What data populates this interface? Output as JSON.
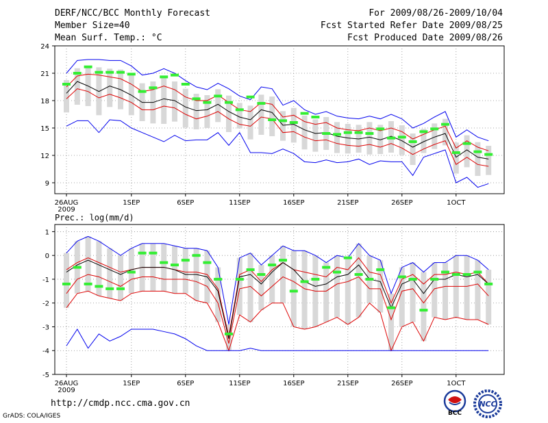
{
  "header": {
    "title": "DERF/NCC/BCC Monthly Forecast",
    "member_size": "Member Size=40",
    "variable": "Mean Surf. Temp.: °C",
    "period": "For 2009/08/26-2009/10/04",
    "start_date": "Fcst Started Refer Date 2009/08/25",
    "produced_date": "Fcst Produced Date 2009/08/26"
  },
  "footer": {
    "url": "http://cmdp.ncc.cma.gov.cn",
    "credit": "GrADS: COLA/IGES",
    "logo_left_text": "BCC",
    "logo_right_text": "NCC"
  },
  "colors": {
    "max_min": "#0000ee",
    "spread": "#dd0000",
    "mean": "#000000",
    "observed": "#33ee33",
    "box": "#d8d8d8",
    "grid": "#888888"
  },
  "chart_data": [
    {
      "type": "line",
      "title": "Mean Surf. Temp.: °C",
      "xlabel": "",
      "ylabel": "°C",
      "ylim": [
        8,
        24
      ],
      "yticks": [
        9,
        12,
        15,
        18,
        21,
        24
      ],
      "x": [
        1,
        2,
        3,
        4,
        5,
        6,
        7,
        8,
        9,
        10,
        11,
        12,
        13,
        14,
        15,
        16,
        17,
        18,
        19,
        20,
        21,
        22,
        23,
        24,
        25,
        26,
        27,
        28,
        29,
        30,
        31,
        32,
        33,
        34,
        35,
        36,
        37,
        38,
        39,
        40
      ],
      "xticks": [
        {
          "x": 1,
          "label": "26AUG"
        },
        {
          "x": 7,
          "label": "1SEP"
        },
        {
          "x": 12,
          "label": "6SEP"
        },
        {
          "x": 17,
          "label": "11SEP"
        },
        {
          "x": 22,
          "label": "16SEP"
        },
        {
          "x": 27,
          "label": "21SEP"
        },
        {
          "x": 32,
          "label": "26SEP"
        },
        {
          "x": 37,
          "label": "1OCT"
        }
      ],
      "year_label": "2009",
      "series": [
        {
          "name": "max",
          "values": [
            21.0,
            22.4,
            22.5,
            22.5,
            22.4,
            22.4,
            21.8,
            20.8,
            21.0,
            21.5,
            21.0,
            20.2,
            19.5,
            19.2,
            19.9,
            19.3,
            18.5,
            18.1,
            19.5,
            19.3,
            17.5,
            18.0,
            17.0,
            16.5,
            16.8,
            16.3,
            16.1,
            16.0,
            16.3,
            16.0,
            16.5,
            16.0,
            15.0,
            15.5,
            16.2,
            16.8,
            14.0,
            14.8,
            14.0,
            13.6
          ]
        },
        {
          "name": "upper",
          "values": [
            19.5,
            20.7,
            20.9,
            20.8,
            20.6,
            20.4,
            19.8,
            19.0,
            19.2,
            19.6,
            19.2,
            18.4,
            18.0,
            18.0,
            18.6,
            17.8,
            17.0,
            16.8,
            17.8,
            17.6,
            16.2,
            16.4,
            15.7,
            15.4,
            15.6,
            15.0,
            14.8,
            14.7,
            15.0,
            14.7,
            15.0,
            14.6,
            13.8,
            14.3,
            14.8,
            15.2,
            12.8,
            13.6,
            12.9,
            12.5
          ]
        },
        {
          "name": "mean",
          "values": [
            18.8,
            20.1,
            19.6,
            19.0,
            19.6,
            19.2,
            18.6,
            17.8,
            17.8,
            18.2,
            18.0,
            17.3,
            16.9,
            17.0,
            17.6,
            16.8,
            16.2,
            15.9,
            17.0,
            16.7,
            15.3,
            15.4,
            14.8,
            14.4,
            14.5,
            14.1,
            13.9,
            13.8,
            14.0,
            13.7,
            14.1,
            13.6,
            12.9,
            13.5,
            14.0,
            14.4,
            11.8,
            12.6,
            11.8,
            11.6
          ]
        },
        {
          "name": "lower",
          "values": [
            18.2,
            19.3,
            19.0,
            18.3,
            18.7,
            18.3,
            17.8,
            17.0,
            17.0,
            17.4,
            17.2,
            16.5,
            16.0,
            16.3,
            16.8,
            16.0,
            15.4,
            15.2,
            16.2,
            16.0,
            14.5,
            14.6,
            14.0,
            13.6,
            13.7,
            13.3,
            13.1,
            13.0,
            13.2,
            12.9,
            13.3,
            12.8,
            12.1,
            12.7,
            13.2,
            13.6,
            11.0,
            11.8,
            11.0,
            10.8
          ]
        },
        {
          "name": "min",
          "values": [
            15.2,
            15.8,
            15.8,
            14.5,
            15.9,
            15.8,
            15.0,
            14.5,
            14.0,
            13.5,
            14.2,
            13.6,
            13.7,
            13.7,
            14.5,
            13.1,
            14.5,
            12.3,
            12.3,
            12.2,
            12.7,
            12.2,
            11.3,
            11.2,
            11.5,
            11.2,
            11.3,
            11.6,
            11.0,
            11.4,
            11.3,
            11.3,
            9.8,
            11.8,
            12.2,
            12.6,
            9.0,
            9.6,
            8.5,
            8.9
          ]
        },
        {
          "name": "observed",
          "values": [
            19.8,
            21.0,
            21.7,
            21.1,
            21.1,
            21.1,
            20.9,
            19.0,
            19.4,
            20.6,
            20.8,
            19.8,
            18.2,
            17.8,
            18.5,
            17.8,
            17.0,
            18.4,
            17.7,
            15.9,
            15.8,
            15.6,
            16.6,
            16.2,
            14.4,
            14.3,
            14.5,
            14.5,
            14.4,
            14.9,
            13.9,
            14.0,
            13.5,
            14.6,
            14.9,
            15.4,
            12.3,
            13.3,
            12.4,
            12.1
          ]
        }
      ]
    },
    {
      "type": "line",
      "title": "Prec.: log(mm/d)",
      "xlabel": "",
      "ylabel": "log(mm/d)",
      "ylim": [
        -5,
        1.3
      ],
      "yticks": [
        -5,
        -4,
        -3,
        -2,
        -1,
        0,
        1
      ],
      "x": [
        1,
        2,
        3,
        4,
        5,
        6,
        7,
        8,
        9,
        10,
        11,
        12,
        13,
        14,
        15,
        16,
        17,
        18,
        19,
        20,
        21,
        22,
        23,
        24,
        25,
        26,
        27,
        28,
        29,
        30,
        31,
        32,
        33,
        34,
        35,
        36,
        37,
        38,
        39,
        40
      ],
      "xticks": [
        {
          "x": 1,
          "label": "26AUG"
        },
        {
          "x": 7,
          "label": "1SEP"
        },
        {
          "x": 12,
          "label": "6SEP"
        },
        {
          "x": 17,
          "label": "11SEP"
        },
        {
          "x": 22,
          "label": "16SEP"
        },
        {
          "x": 27,
          "label": "21SEP"
        },
        {
          "x": 32,
          "label": "26SEP"
        },
        {
          "x": 37,
          "label": "1OCT"
        }
      ],
      "year_label": "2009",
      "series": [
        {
          "name": "max",
          "values": [
            0.1,
            0.6,
            0.8,
            0.6,
            0.3,
            0.0,
            0.3,
            0.5,
            0.5,
            0.5,
            0.4,
            0.3,
            0.3,
            0.2,
            -0.5,
            -2.9,
            -0.1,
            0.1,
            -0.4,
            0.0,
            0.4,
            0.2,
            0.2,
            0.0,
            -0.3,
            0.0,
            -0.1,
            0.5,
            0.0,
            -0.2,
            -1.6,
            -0.5,
            -0.3,
            -0.7,
            -0.3,
            -0.3,
            0.0,
            0.0,
            -0.2,
            -0.6
          ]
        },
        {
          "name": "upper",
          "values": [
            -0.6,
            -0.3,
            -0.1,
            -0.3,
            -0.5,
            -0.7,
            -0.6,
            -0.5,
            -0.5,
            -0.5,
            -0.6,
            -0.7,
            -0.7,
            -0.8,
            -1.4,
            -3.4,
            -0.8,
            -0.6,
            -1.1,
            -0.6,
            -0.3,
            -0.6,
            -0.7,
            -0.8,
            -0.9,
            -0.5,
            -0.6,
            -0.1,
            -0.7,
            -0.8,
            -2.0,
            -1.0,
            -0.8,
            -1.2,
            -0.8,
            -0.8,
            -0.7,
            -0.8,
            -0.7,
            -1.2
          ]
        },
        {
          "name": "mean",
          "values": [
            -0.7,
            -0.4,
            -0.2,
            -0.4,
            -0.6,
            -0.8,
            -0.6,
            -0.5,
            -0.5,
            -0.5,
            -0.6,
            -0.8,
            -0.8,
            -0.9,
            -1.5,
            -3.5,
            -0.9,
            -0.8,
            -1.2,
            -0.7,
            -0.3,
            -0.6,
            -1.1,
            -1.3,
            -1.2,
            -0.9,
            -0.8,
            -0.4,
            -1.0,
            -1.1,
            -2.2,
            -1.2,
            -1.0,
            -1.6,
            -1.0,
            -1.0,
            -0.8,
            -0.9,
            -0.8,
            -1.2
          ]
        },
        {
          "name": "lower",
          "values": [
            -1.6,
            -1.0,
            -0.8,
            -0.9,
            -1.1,
            -1.3,
            -1.0,
            -0.9,
            -0.9,
            -1.0,
            -1.0,
            -1.0,
            -1.1,
            -1.3,
            -2.0,
            -3.7,
            -1.4,
            -1.3,
            -1.7,
            -1.3,
            -0.9,
            -1.1,
            -1.4,
            -1.5,
            -1.5,
            -1.2,
            -1.1,
            -0.9,
            -1.4,
            -1.4,
            -2.7,
            -1.5,
            -1.4,
            -2.0,
            -1.4,
            -1.3,
            -1.3,
            -1.3,
            -1.2,
            -1.7
          ]
        },
        {
          "name": "lower2",
          "values": [
            -2.2,
            -1.6,
            -1.5,
            -1.7,
            -1.8,
            -1.9,
            -1.6,
            -1.5,
            -1.5,
            -1.5,
            -1.6,
            -1.6,
            -1.9,
            -2.0,
            -2.8,
            -4.0,
            -2.5,
            -2.8,
            -2.3,
            -2.0,
            -2.0,
            -3.0,
            -3.1,
            -3.0,
            -2.8,
            -2.6,
            -2.9,
            -2.6,
            -2.0,
            -2.4,
            -4.0,
            -3.0,
            -2.8,
            -3.6,
            -2.6,
            -2.7,
            -2.6,
            -2.7,
            -2.7,
            -2.9
          ]
        },
        {
          "name": "min",
          "values": [
            -3.8,
            -3.1,
            -3.9,
            -3.3,
            -3.6,
            -3.4,
            -3.1,
            -3.1,
            -3.1,
            -3.2,
            -3.3,
            -3.5,
            -3.8,
            -4.0,
            -4.0,
            -4.0,
            -4.0,
            -3.9,
            -4.0,
            -4.0,
            -4.0,
            -4.0,
            -4.0,
            -4.0,
            -4.0,
            -4.0,
            -4.0,
            -4.0,
            -4.0,
            -4.0,
            -4.0,
            -4.0,
            -4.0,
            -4.0,
            -4.0,
            -4.0,
            -4.0,
            -4.0,
            -4.0,
            -4.0
          ]
        },
        {
          "name": "observed",
          "values": [
            -1.2,
            -0.5,
            -1.2,
            -1.3,
            -1.4,
            -1.4,
            -0.7,
            0.1,
            0.1,
            -0.3,
            -0.4,
            -0.2,
            0.0,
            -0.3,
            -1.0,
            -3.3,
            -1.0,
            -0.6,
            -0.8,
            -0.4,
            -0.2,
            -1.5,
            -1.1,
            -1.0,
            -0.5,
            -0.7,
            -0.1,
            -0.8,
            -1.0,
            -0.6,
            -2.2,
            -0.9,
            -1.0,
            -2.3,
            -1.0,
            -0.7,
            -0.8,
            -0.8,
            -0.7,
            -1.2
          ]
        }
      ]
    }
  ]
}
